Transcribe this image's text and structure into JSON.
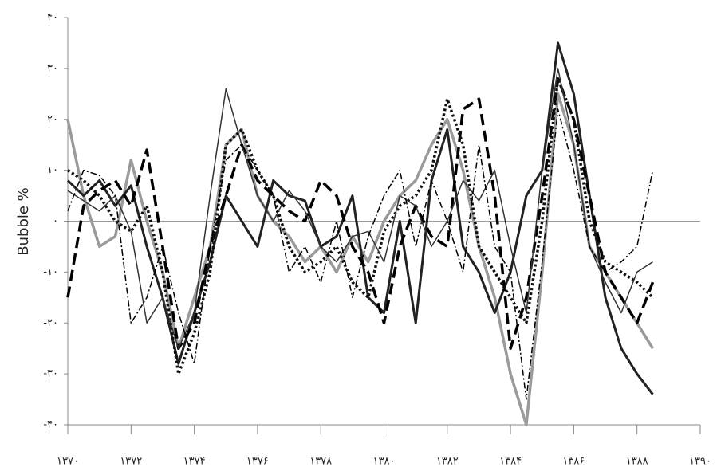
{
  "chart_data": {
    "type": "line",
    "y_label": "Bubble %",
    "x": [
      1370,
      1370.5,
      1371,
      1371.5,
      1372,
      1372.5,
      1373,
      1373.5,
      1374,
      1374.5,
      1375,
      1375.5,
      1376,
      1376.5,
      1377,
      1377.5,
      1378,
      1378.5,
      1379,
      1379.5,
      1380,
      1380.5,
      1381,
      1381.5,
      1382,
      1382.5,
      1383,
      1383.5,
      1384,
      1384.5,
      1385,
      1385.5,
      1386,
      1386.5,
      1387,
      1387.5,
      1388,
      1388.5
    ],
    "xlim": [
      1370,
      1390
    ],
    "xticks": [
      {
        "value": 1370,
        "label": "۱۳۷۰"
      },
      {
        "value": 1372,
        "label": "۱۳۷۲"
      },
      {
        "value": 1374,
        "label": "۱۳۷۴"
      },
      {
        "value": 1376,
        "label": "۱۳۷۶"
      },
      {
        "value": 1378,
        "label": "۱۳۷۸"
      },
      {
        "value": 1380,
        "label": "۱۳۸۰"
      },
      {
        "value": 1382,
        "label": "۱۳۸۲"
      },
      {
        "value": 1384,
        "label": "۱۳۸۴"
      },
      {
        "value": 1386,
        "label": "۱۳۸۶"
      },
      {
        "value": 1388,
        "label": "۱۳۸۸"
      },
      {
        "value": 1390,
        "label": "۱۳۹۰"
      }
    ],
    "ylim": [
      -40,
      40
    ],
    "yticks": [
      {
        "value": 40,
        "label": "۴۰"
      },
      {
        "value": 30,
        "label": "۳۰"
      },
      {
        "value": 20,
        "label": "۲۰"
      },
      {
        "value": 10,
        "label": "۱۰"
      },
      {
        "value": 0,
        "label": "۰"
      },
      {
        "value": -10,
        "label": "-۱۰"
      },
      {
        "value": -20,
        "label": "-۲۰"
      },
      {
        "value": -30,
        "label": "-۳۰"
      },
      {
        "value": -40,
        "label": "-۴۰"
      }
    ],
    "series": [
      {
        "color": "#9a9a9a",
        "width": 3.5,
        "dash": "none",
        "values": [
          20,
          5,
          -5,
          -3,
          12,
          0,
          -10,
          -25,
          -15,
          -5,
          15,
          18,
          5,
          0,
          -3,
          -8,
          -5,
          -10,
          -3,
          -8,
          0,
          5,
          8,
          15,
          20,
          10,
          -5,
          -15,
          -30,
          -40,
          -10,
          25,
          15,
          -5,
          -10,
          -15,
          -20,
          -25
        ]
      },
      {
        "color": "#222222",
        "width": 3,
        "dash": "none",
        "values": [
          8,
          5,
          8,
          3,
          7,
          -5,
          -15,
          -28,
          -18,
          -8,
          5,
          0,
          -5,
          8,
          5,
          4,
          -5,
          -3,
          5,
          -15,
          -18,
          0,
          -20,
          8,
          18,
          -5,
          -10,
          -18,
          -10,
          5,
          10,
          35,
          25,
          5,
          -15,
          -25,
          -30,
          -34
        ]
      },
      {
        "color": "#000000",
        "width": 3.5,
        "dash": "14,7",
        "values": [
          -15,
          3,
          6,
          8,
          3,
          14,
          -5,
          -25,
          -20,
          -5,
          5,
          15,
          8,
          5,
          2,
          0,
          8,
          5,
          -5,
          -10,
          -20,
          -5,
          3,
          -3,
          -5,
          22,
          24,
          5,
          -25,
          -15,
          5,
          28,
          20,
          5,
          -10,
          -15,
          -20,
          -12
        ]
      },
      {
        "color": "#111111",
        "width": 3.5,
        "dash": "3,3",
        "values": [
          10,
          8,
          5,
          0,
          -2,
          3,
          -10,
          -30,
          -22,
          -10,
          15,
          18,
          10,
          5,
          -5,
          -10,
          -8,
          -5,
          -12,
          -15,
          -2,
          3,
          5,
          10,
          24,
          15,
          -5,
          -10,
          -15,
          -20,
          0,
          28,
          20,
          0,
          -8,
          -10,
          -12,
          -15
        ]
      },
      {
        "color": "#333333",
        "width": 1.5,
        "dash": "none",
        "values": [
          6,
          4,
          2,
          5,
          -2,
          -20,
          -15,
          -25,
          -18,
          5,
          26,
          15,
          5,
          0,
          6,
          2,
          -5,
          -8,
          -3,
          -2,
          -8,
          5,
          3,
          -5,
          0,
          8,
          4,
          10,
          -5,
          -18,
          10,
          30,
          15,
          -5,
          -12,
          -18,
          -10,
          -8
        ]
      },
      {
        "color": "#000000",
        "width": 1.5,
        "dash": "8,3,2,3",
        "values": [
          2,
          10,
          9,
          5,
          -20,
          -15,
          -5,
          -18,
          -28,
          -5,
          12,
          15,
          10,
          5,
          -10,
          -5,
          -12,
          0,
          -15,
          -3,
          5,
          10,
          -5,
          8,
          0,
          -10,
          15,
          -5,
          -10,
          -35,
          -8,
          22,
          10,
          -5,
          -10,
          -8,
          -5,
          10
        ]
      }
    ]
  }
}
